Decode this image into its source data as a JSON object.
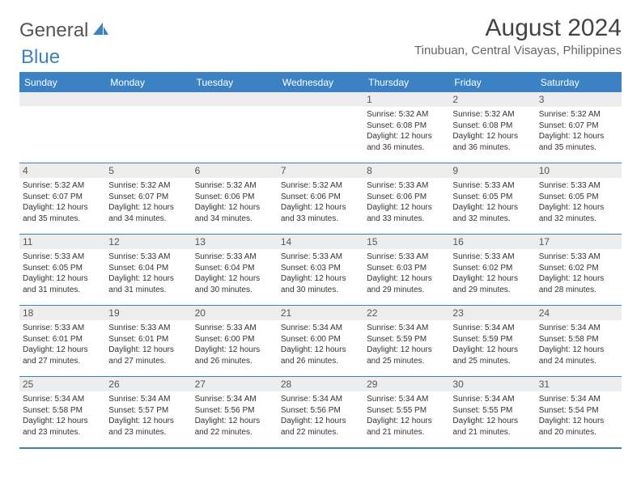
{
  "brand": {
    "part1": "General",
    "part2": "Blue"
  },
  "title": "August 2024",
  "location": "Tinubuan, Central Visayas, Philippines",
  "colors": {
    "accent": "#3b82c4",
    "header_row_bg": "#ededed",
    "text": "#333333",
    "title_text": "#444444",
    "location_text": "#666666",
    "logo_gray": "#555555"
  },
  "layout": {
    "columns": 7,
    "rows": 5,
    "daynum_fontsize": 12,
    "content_fontsize": 10,
    "header_fontsize": 12,
    "title_fontsize": 30,
    "location_fontsize": 15
  },
  "weekdays": [
    "Sunday",
    "Monday",
    "Tuesday",
    "Wednesday",
    "Thursday",
    "Friday",
    "Saturday"
  ],
  "days": [
    {
      "n": 1,
      "sunrise": "5:32 AM",
      "sunset": "6:08 PM",
      "daylight": "12 hours and 36 minutes."
    },
    {
      "n": 2,
      "sunrise": "5:32 AM",
      "sunset": "6:08 PM",
      "daylight": "12 hours and 36 minutes."
    },
    {
      "n": 3,
      "sunrise": "5:32 AM",
      "sunset": "6:07 PM",
      "daylight": "12 hours and 35 minutes."
    },
    {
      "n": 4,
      "sunrise": "5:32 AM",
      "sunset": "6:07 PM",
      "daylight": "12 hours and 35 minutes."
    },
    {
      "n": 5,
      "sunrise": "5:32 AM",
      "sunset": "6:07 PM",
      "daylight": "12 hours and 34 minutes."
    },
    {
      "n": 6,
      "sunrise": "5:32 AM",
      "sunset": "6:06 PM",
      "daylight": "12 hours and 34 minutes."
    },
    {
      "n": 7,
      "sunrise": "5:32 AM",
      "sunset": "6:06 PM",
      "daylight": "12 hours and 33 minutes."
    },
    {
      "n": 8,
      "sunrise": "5:33 AM",
      "sunset": "6:06 PM",
      "daylight": "12 hours and 33 minutes."
    },
    {
      "n": 9,
      "sunrise": "5:33 AM",
      "sunset": "6:05 PM",
      "daylight": "12 hours and 32 minutes."
    },
    {
      "n": 10,
      "sunrise": "5:33 AM",
      "sunset": "6:05 PM",
      "daylight": "12 hours and 32 minutes."
    },
    {
      "n": 11,
      "sunrise": "5:33 AM",
      "sunset": "6:05 PM",
      "daylight": "12 hours and 31 minutes."
    },
    {
      "n": 12,
      "sunrise": "5:33 AM",
      "sunset": "6:04 PM",
      "daylight": "12 hours and 31 minutes."
    },
    {
      "n": 13,
      "sunrise": "5:33 AM",
      "sunset": "6:04 PM",
      "daylight": "12 hours and 30 minutes."
    },
    {
      "n": 14,
      "sunrise": "5:33 AM",
      "sunset": "6:03 PM",
      "daylight": "12 hours and 30 minutes."
    },
    {
      "n": 15,
      "sunrise": "5:33 AM",
      "sunset": "6:03 PM",
      "daylight": "12 hours and 29 minutes."
    },
    {
      "n": 16,
      "sunrise": "5:33 AM",
      "sunset": "6:02 PM",
      "daylight": "12 hours and 29 minutes."
    },
    {
      "n": 17,
      "sunrise": "5:33 AM",
      "sunset": "6:02 PM",
      "daylight": "12 hours and 28 minutes."
    },
    {
      "n": 18,
      "sunrise": "5:33 AM",
      "sunset": "6:01 PM",
      "daylight": "12 hours and 27 minutes."
    },
    {
      "n": 19,
      "sunrise": "5:33 AM",
      "sunset": "6:01 PM",
      "daylight": "12 hours and 27 minutes."
    },
    {
      "n": 20,
      "sunrise": "5:33 AM",
      "sunset": "6:00 PM",
      "daylight": "12 hours and 26 minutes."
    },
    {
      "n": 21,
      "sunrise": "5:34 AM",
      "sunset": "6:00 PM",
      "daylight": "12 hours and 26 minutes."
    },
    {
      "n": 22,
      "sunrise": "5:34 AM",
      "sunset": "5:59 PM",
      "daylight": "12 hours and 25 minutes."
    },
    {
      "n": 23,
      "sunrise": "5:34 AM",
      "sunset": "5:59 PM",
      "daylight": "12 hours and 25 minutes."
    },
    {
      "n": 24,
      "sunrise": "5:34 AM",
      "sunset": "5:58 PM",
      "daylight": "12 hours and 24 minutes."
    },
    {
      "n": 25,
      "sunrise": "5:34 AM",
      "sunset": "5:58 PM",
      "daylight": "12 hours and 23 minutes."
    },
    {
      "n": 26,
      "sunrise": "5:34 AM",
      "sunset": "5:57 PM",
      "daylight": "12 hours and 23 minutes."
    },
    {
      "n": 27,
      "sunrise": "5:34 AM",
      "sunset": "5:56 PM",
      "daylight": "12 hours and 22 minutes."
    },
    {
      "n": 28,
      "sunrise": "5:34 AM",
      "sunset": "5:56 PM",
      "daylight": "12 hours and 22 minutes."
    },
    {
      "n": 29,
      "sunrise": "5:34 AM",
      "sunset": "5:55 PM",
      "daylight": "12 hours and 21 minutes."
    },
    {
      "n": 30,
      "sunrise": "5:34 AM",
      "sunset": "5:55 PM",
      "daylight": "12 hours and 21 minutes."
    },
    {
      "n": 31,
      "sunrise": "5:34 AM",
      "sunset": "5:54 PM",
      "daylight": "12 hours and 20 minutes."
    }
  ],
  "labels": {
    "sunrise": "Sunrise:",
    "sunset": "Sunset:",
    "daylight": "Daylight:"
  },
  "start_weekday_index": 4
}
